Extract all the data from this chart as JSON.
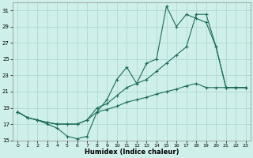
{
  "xlabel": "Humidex (Indice chaleur)",
  "background_color": "#cff0ea",
  "grid_color": "#b0d8d0",
  "line_color": "#1a6b5a",
  "xlim": [
    -0.5,
    23.5
  ],
  "ylim": [
    15,
    32
  ],
  "xticks": [
    0,
    1,
    2,
    3,
    4,
    5,
    6,
    7,
    8,
    9,
    10,
    11,
    12,
    13,
    14,
    15,
    16,
    17,
    18,
    19,
    20,
    21,
    22,
    23
  ],
  "yticks": [
    15,
    17,
    19,
    21,
    23,
    25,
    27,
    29,
    31
  ],
  "series1_x": [
    0,
    1,
    2,
    3,
    4,
    5,
    6,
    7,
    8,
    9,
    10,
    11,
    12,
    13,
    14,
    15,
    16,
    17,
    18,
    19,
    20,
    21,
    22,
    23
  ],
  "series1_y": [
    18.5,
    17.8,
    17.5,
    17.0,
    16.5,
    15.5,
    15.2,
    15.5,
    18.5,
    20.0,
    22.5,
    24.0,
    22.0,
    24.5,
    25.0,
    31.5,
    29.0,
    30.5,
    30.0,
    29.5,
    26.5,
    21.5,
    21.5,
    21.5
  ],
  "series2_x": [
    0,
    1,
    2,
    3,
    4,
    5,
    6,
    7,
    8,
    9,
    10,
    11,
    12,
    13,
    14,
    15,
    16,
    17,
    18,
    19,
    20,
    21,
    22,
    23
  ],
  "series2_y": [
    18.5,
    17.8,
    17.5,
    17.2,
    17.0,
    17.0,
    17.0,
    17.5,
    19.0,
    19.5,
    20.5,
    21.5,
    22.0,
    22.5,
    23.5,
    24.5,
    25.5,
    26.5,
    30.5,
    30.5,
    26.5,
    21.5,
    21.5,
    21.5
  ],
  "series3_x": [
    0,
    1,
    2,
    3,
    4,
    5,
    6,
    7,
    8,
    9,
    10,
    11,
    12,
    13,
    14,
    15,
    16,
    17,
    18,
    19,
    20,
    21,
    22,
    23
  ],
  "series3_y": [
    18.5,
    17.8,
    17.5,
    17.2,
    17.0,
    17.0,
    17.0,
    17.5,
    18.5,
    18.8,
    19.2,
    19.7,
    20.0,
    20.3,
    20.7,
    21.0,
    21.3,
    21.7,
    22.0,
    21.5,
    21.5,
    21.5,
    21.5,
    21.5
  ]
}
